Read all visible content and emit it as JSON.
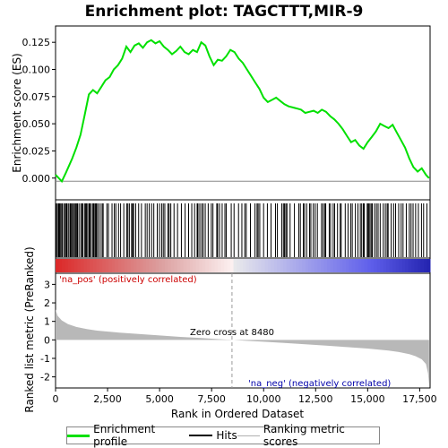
{
  "chart_data": [
    {
      "type": "line",
      "title": "Enrichment plot: TAGCTTT,MIR-9",
      "ylabel": "Enrichment score (ES)",
      "xlim": [
        0,
        18000
      ],
      "ylim": [
        -0.02,
        0.14
      ],
      "yticks": [
        "0.000",
        "0.025",
        "0.050",
        "0.075",
        "0.100",
        "0.125"
      ],
      "color": "#00e000",
      "series": [
        {
          "name": "Enrichment profile",
          "x": [
            0,
            300,
            500,
            800,
            1000,
            1200,
            1400,
            1600,
            1800,
            2000,
            2200,
            2400,
            2600,
            2800,
            3000,
            3200,
            3400,
            3600,
            3800,
            4000,
            4200,
            4400,
            4600,
            4800,
            5000,
            5200,
            5400,
            5600,
            5800,
            6000,
            6200,
            6400,
            6600,
            6800,
            7000,
            7200,
            7400,
            7600,
            7800,
            8000,
            8200,
            8400,
            8600,
            8800,
            9000,
            9200,
            9400,
            9600,
            9800,
            10000,
            10200,
            10400,
            10600,
            10800,
            11000,
            11200,
            11400,
            11600,
            11800,
            12000,
            12200,
            12400,
            12600,
            12800,
            13000,
            13200,
            13400,
            13600,
            13800,
            14000,
            14200,
            14400,
            14600,
            14800,
            15000,
            15200,
            15400,
            15600,
            15800,
            16000,
            16200,
            16400,
            16600,
            16800,
            17000,
            17200,
            17400,
            17600,
            17800,
            17950
          ],
          "y": [
            0.003,
            -0.003,
            0.005,
            0.018,
            0.028,
            0.04,
            0.058,
            0.077,
            0.081,
            0.078,
            0.084,
            0.09,
            0.093,
            0.1,
            0.104,
            0.11,
            0.121,
            0.116,
            0.122,
            0.124,
            0.12,
            0.125,
            0.127,
            0.124,
            0.126,
            0.121,
            0.118,
            0.114,
            0.117,
            0.121,
            0.116,
            0.114,
            0.118,
            0.116,
            0.125,
            0.122,
            0.112,
            0.104,
            0.109,
            0.108,
            0.112,
            0.118,
            0.116,
            0.11,
            0.106,
            0.1,
            0.094,
            0.088,
            0.082,
            0.074,
            0.07,
            0.072,
            0.074,
            0.071,
            0.068,
            0.066,
            0.065,
            0.064,
            0.063,
            0.06,
            0.061,
            0.062,
            0.06,
            0.063,
            0.061,
            0.057,
            0.054,
            0.05,
            0.045,
            0.039,
            0.033,
            0.035,
            0.03,
            0.027,
            0.033,
            0.038,
            0.043,
            0.05,
            0.048,
            0.046,
            0.049,
            0.042,
            0.035,
            0.028,
            0.018,
            0.01,
            0.006,
            0.009,
            0.003,
            0.0
          ]
        }
      ]
    },
    {
      "type": "line",
      "ylabel": "Ranked list metric (PreRanked)",
      "xlabel": "Rank in Ordered Dataset",
      "xlim": [
        0,
        18000
      ],
      "ylim": [
        -2.6,
        3.6
      ],
      "xticks": [
        "0",
        "2,500",
        "5,000",
        "7,500",
        "10,000",
        "12,500",
        "15,000",
        "17,500"
      ],
      "yticks": [
        "3",
        "2",
        "1",
        "0",
        "-1",
        "-2"
      ],
      "color": "#b0b0b0",
      "series": [
        {
          "name": "Ranking metric scores",
          "x": [
            0,
            100,
            300,
            600,
            1000,
            1500,
            2000,
            3000,
            4000,
            5000,
            6000,
            7000,
            8000,
            8480,
            9000,
            10000,
            11000,
            12000,
            13000,
            14000,
            15000,
            16000,
            16500,
            17000,
            17300,
            17600,
            17800,
            17900,
            17950
          ],
          "y": [
            1.65,
            1.3,
            1.05,
            0.85,
            0.7,
            0.58,
            0.5,
            0.4,
            0.32,
            0.24,
            0.16,
            0.1,
            0.03,
            0.0,
            -0.04,
            -0.1,
            -0.17,
            -0.24,
            -0.31,
            -0.39,
            -0.47,
            -0.58,
            -0.66,
            -0.77,
            -0.88,
            -1.05,
            -1.3,
            -1.8,
            -2.45
          ]
        }
      ],
      "annotations": [
        "'na_pos' (positively correlated)",
        "Zero cross at 8480",
        "'na_neg' (negatively correlated)"
      ],
      "zero_cross": 8480,
      "colors": {
        "positive": "#cc0000",
        "negative": "#0000aa"
      }
    }
  ],
  "legend": {
    "items": [
      {
        "label": "Enrichment profile",
        "color": "#00e000"
      },
      {
        "label": "Hits",
        "color": "#000000"
      },
      {
        "label": "Ranking metric scores",
        "color": "#b0b0b0"
      }
    ]
  }
}
